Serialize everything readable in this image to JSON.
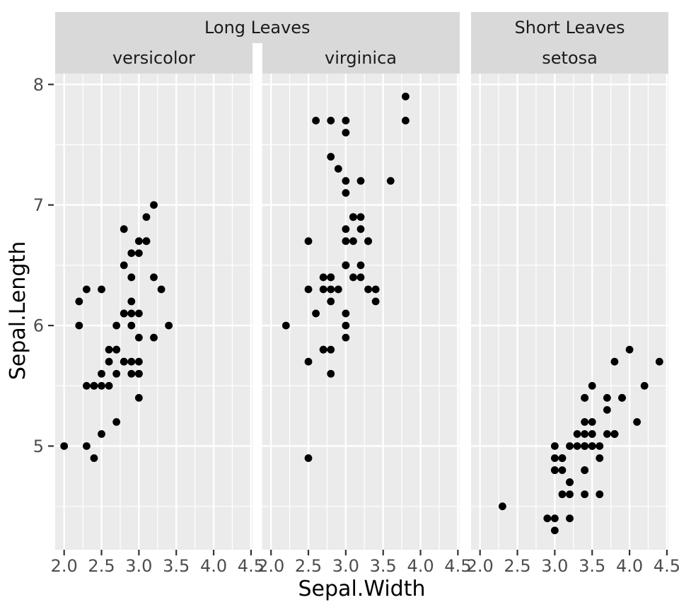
{
  "chart_data": {
    "type": "scatter",
    "title": "",
    "xlabel": "Sepal.Width",
    "ylabel": "Sepal.Length",
    "x_domain": [
      1.88,
      4.52
    ],
    "y_domain": [
      4.14,
      8.09
    ],
    "x_ticks": [
      {
        "value": 2.0,
        "label": "2.0"
      },
      {
        "value": 2.5,
        "label": "2.5"
      },
      {
        "value": 3.0,
        "label": "3.0"
      },
      {
        "value": 3.5,
        "label": "3.5"
      },
      {
        "value": 4.0,
        "label": "4.0"
      },
      {
        "value": 4.5,
        "label": "4.5"
      }
    ],
    "y_ticks": [
      {
        "value": 5,
        "label": "5"
      },
      {
        "value": 6,
        "label": "6"
      },
      {
        "value": 7,
        "label": "7"
      },
      {
        "value": 8,
        "label": "8"
      }
    ],
    "x_minor": [
      2.25,
      2.75,
      3.25,
      3.75,
      4.25
    ],
    "y_minor": [
      4.5,
      5.5,
      6.5,
      7.5
    ],
    "grid": "on",
    "legend": "none",
    "outer_strips": [
      {
        "label": "Long Leaves",
        "facets": [
          "versicolor",
          "virginica"
        ]
      },
      {
        "label": "Short Leaves",
        "facets": [
          "setosa"
        ]
      }
    ],
    "colors": {
      "panel_bg": "#EBEBEB",
      "strip_bg": "#D9D9D9",
      "gridline": "#FFFFFF",
      "point": "#000000",
      "tick_mark": "#333333",
      "tick_label": "#4D4D4D",
      "axis_title": "#000000",
      "strip_text": "#1A1A1A"
    },
    "facets": [
      {
        "outer": "Long Leaves",
        "label": "versicolor",
        "points": [
          [
            3.2,
            7.0
          ],
          [
            3.2,
            6.4
          ],
          [
            3.1,
            6.9
          ],
          [
            2.3,
            5.5
          ],
          [
            2.8,
            6.5
          ],
          [
            2.8,
            5.7
          ],
          [
            3.3,
            6.3
          ],
          [
            2.4,
            4.9
          ],
          [
            2.9,
            6.6
          ],
          [
            2.7,
            5.2
          ],
          [
            2.0,
            5.0
          ],
          [
            3.0,
            5.9
          ],
          [
            2.2,
            6.0
          ],
          [
            2.9,
            6.1
          ],
          [
            2.9,
            5.6
          ],
          [
            3.1,
            6.7
          ],
          [
            3.0,
            5.6
          ],
          [
            2.7,
            5.8
          ],
          [
            2.2,
            6.2
          ],
          [
            2.5,
            5.6
          ],
          [
            3.2,
            5.9
          ],
          [
            2.8,
            6.1
          ],
          [
            2.5,
            6.3
          ],
          [
            2.8,
            6.1
          ],
          [
            2.9,
            6.4
          ],
          [
            3.0,
            6.6
          ],
          [
            2.8,
            6.8
          ],
          [
            3.0,
            6.7
          ],
          [
            2.9,
            6.0
          ],
          [
            2.6,
            5.7
          ],
          [
            2.4,
            5.5
          ],
          [
            2.4,
            5.5
          ],
          [
            2.7,
            5.8
          ],
          [
            2.7,
            6.0
          ],
          [
            3.0,
            5.4
          ],
          [
            3.4,
            6.0
          ],
          [
            3.1,
            6.7
          ],
          [
            2.3,
            6.3
          ],
          [
            3.0,
            5.6
          ],
          [
            2.5,
            5.5
          ],
          [
            2.6,
            5.5
          ],
          [
            3.0,
            6.1
          ],
          [
            2.6,
            5.8
          ],
          [
            2.3,
            5.0
          ],
          [
            2.7,
            5.6
          ],
          [
            3.0,
            5.7
          ],
          [
            2.9,
            5.7
          ],
          [
            2.9,
            6.2
          ],
          [
            2.5,
            5.1
          ],
          [
            2.8,
            5.7
          ]
        ]
      },
      {
        "outer": "Long Leaves",
        "label": "virginica",
        "points": [
          [
            3.3,
            6.3
          ],
          [
            2.7,
            5.8
          ],
          [
            3.0,
            7.1
          ],
          [
            2.9,
            6.3
          ],
          [
            3.0,
            6.5
          ],
          [
            3.0,
            7.6
          ],
          [
            2.5,
            4.9
          ],
          [
            2.9,
            7.3
          ],
          [
            2.5,
            6.7
          ],
          [
            3.6,
            7.2
          ],
          [
            3.2,
            6.5
          ],
          [
            2.7,
            6.4
          ],
          [
            3.0,
            6.8
          ],
          [
            2.5,
            5.7
          ],
          [
            2.8,
            5.8
          ],
          [
            3.2,
            6.4
          ],
          [
            3.0,
            6.5
          ],
          [
            3.8,
            7.7
          ],
          [
            2.6,
            7.7
          ],
          [
            2.2,
            6.0
          ],
          [
            3.2,
            6.9
          ],
          [
            2.8,
            5.6
          ],
          [
            2.8,
            7.7
          ],
          [
            2.7,
            6.3
          ],
          [
            3.3,
            6.7
          ],
          [
            3.2,
            7.2
          ],
          [
            2.8,
            6.2
          ],
          [
            3.0,
            6.1
          ],
          [
            2.8,
            6.4
          ],
          [
            3.0,
            7.2
          ],
          [
            2.8,
            7.4
          ],
          [
            3.8,
            7.9
          ],
          [
            2.8,
            6.4
          ],
          [
            2.8,
            6.3
          ],
          [
            2.6,
            6.1
          ],
          [
            3.0,
            7.7
          ],
          [
            3.4,
            6.3
          ],
          [
            3.1,
            6.4
          ],
          [
            3.0,
            6.0
          ],
          [
            3.1,
            6.9
          ],
          [
            3.1,
            6.7
          ],
          [
            3.1,
            6.9
          ],
          [
            2.7,
            5.8
          ],
          [
            3.2,
            6.8
          ],
          [
            3.3,
            6.7
          ],
          [
            3.0,
            6.7
          ],
          [
            2.5,
            6.3
          ],
          [
            3.0,
            6.5
          ],
          [
            3.4,
            6.2
          ],
          [
            3.0,
            5.9
          ]
        ]
      },
      {
        "outer": "Short Leaves",
        "label": "setosa",
        "points": [
          [
            3.5,
            5.1
          ],
          [
            3.0,
            4.9
          ],
          [
            3.2,
            4.7
          ],
          [
            3.1,
            4.6
          ],
          [
            3.6,
            5.0
          ],
          [
            3.9,
            5.4
          ],
          [
            3.4,
            4.6
          ],
          [
            3.4,
            5.0
          ],
          [
            2.9,
            4.4
          ],
          [
            3.1,
            4.9
          ],
          [
            3.7,
            5.4
          ],
          [
            3.4,
            4.8
          ],
          [
            3.0,
            4.8
          ],
          [
            3.0,
            4.3
          ],
          [
            4.0,
            5.8
          ],
          [
            4.4,
            5.7
          ],
          [
            3.9,
            5.4
          ],
          [
            3.5,
            5.1
          ],
          [
            3.8,
            5.7
          ],
          [
            3.8,
            5.1
          ],
          [
            3.4,
            5.4
          ],
          [
            3.7,
            5.1
          ],
          [
            3.6,
            4.6
          ],
          [
            3.3,
            5.1
          ],
          [
            3.4,
            4.8
          ],
          [
            3.0,
            5.0
          ],
          [
            3.4,
            5.0
          ],
          [
            3.5,
            5.2
          ],
          [
            3.4,
            5.2
          ],
          [
            3.2,
            4.7
          ],
          [
            3.1,
            4.8
          ],
          [
            3.4,
            5.4
          ],
          [
            4.1,
            5.2
          ],
          [
            4.2,
            5.5
          ],
          [
            3.1,
            4.9
          ],
          [
            3.2,
            5.0
          ],
          [
            3.5,
            5.5
          ],
          [
            3.6,
            4.9
          ],
          [
            3.0,
            4.4
          ],
          [
            3.4,
            5.1
          ],
          [
            3.5,
            5.0
          ],
          [
            2.3,
            4.5
          ],
          [
            3.2,
            4.4
          ],
          [
            3.5,
            5.0
          ],
          [
            3.8,
            5.1
          ],
          [
            3.0,
            4.8
          ],
          [
            3.8,
            5.1
          ],
          [
            3.2,
            4.6
          ],
          [
            3.7,
            5.3
          ],
          [
            3.3,
            5.0
          ]
        ]
      }
    ]
  }
}
